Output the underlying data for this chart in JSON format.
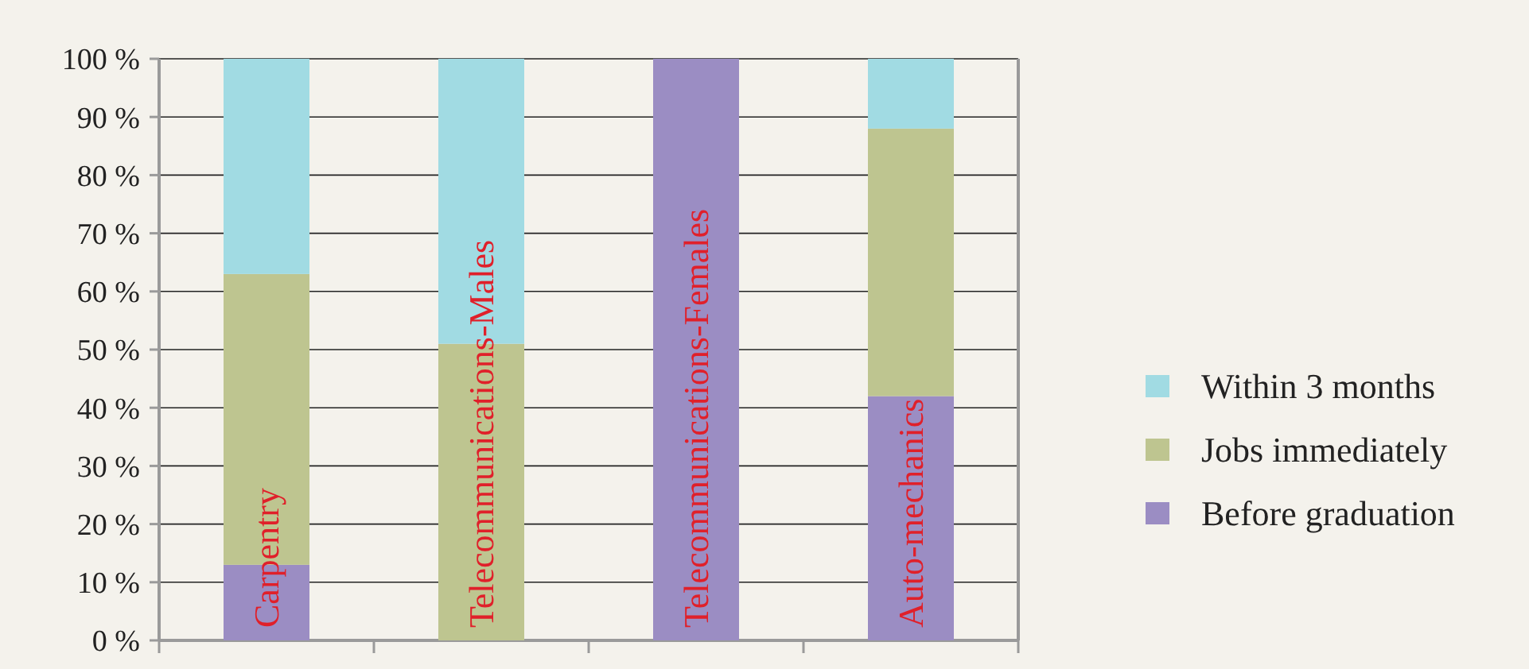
{
  "chart_data": {
    "type": "bar",
    "stacked": true,
    "categories": [
      "Carpentry",
      "Telecommunications-Males",
      "Telecommunications-Females",
      "Auto-mechanics"
    ],
    "series": [
      {
        "name": "Before graduation",
        "color": "#9b8dc3",
        "values": [
          13,
          0,
          100,
          42
        ]
      },
      {
        "name": "Jobs immediately",
        "color": "#bec590",
        "values": [
          50,
          51,
          0,
          46
        ]
      },
      {
        "name": "Within 3 months",
        "color": "#a1dbe3",
        "values": [
          37,
          49,
          0,
          12
        ]
      }
    ],
    "ylim": [
      0,
      100
    ],
    "yticks": [
      {
        "value": 0,
        "label": "0 %"
      },
      {
        "value": 10,
        "label": "10 %"
      },
      {
        "value": 20,
        "label": "20 %"
      },
      {
        "value": 30,
        "label": "30 %"
      },
      {
        "value": 40,
        "label": "40 %"
      },
      {
        "value": 50,
        "label": "50 %"
      },
      {
        "value": 60,
        "label": "60 %"
      },
      {
        "value": 70,
        "label": "70 %"
      },
      {
        "value": 80,
        "label": "80 %"
      },
      {
        "value": 90,
        "label": "90 %"
      },
      {
        "value": 100,
        "label": "100 %"
      }
    ],
    "grid": "y",
    "legend": "right"
  }
}
